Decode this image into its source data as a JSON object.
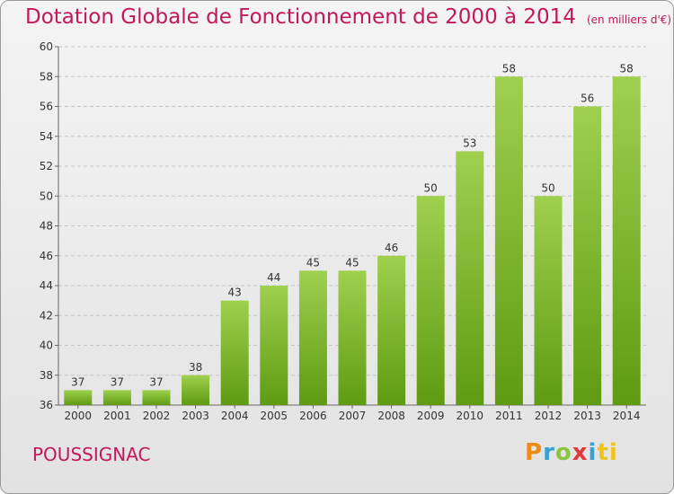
{
  "header": {
    "title": "Dotation Globale de Fonctionnement de 2000 à 2014",
    "subtitle": "(en milliers d'€)"
  },
  "footer": {
    "commune": "POUSSIGNAC",
    "logo": [
      "P",
      "r",
      "o",
      "x",
      "i",
      "ti"
    ]
  },
  "colors": {
    "bar_light": "#9fd04e",
    "bar_dark": "#5e9b12",
    "title": "#c2185b",
    "grid": "#c8c8c8"
  },
  "chart_data": {
    "type": "bar",
    "title": "Dotation Globale de Fonctionnement de 2000 à 2014",
    "categories": [
      "2000",
      "2001",
      "2002",
      "2003",
      "2004",
      "2005",
      "2006",
      "2007",
      "2008",
      "2009",
      "2010",
      "2011",
      "2012",
      "2013",
      "2014"
    ],
    "values": [
      37,
      37,
      37,
      38,
      43,
      44,
      45,
      45,
      46,
      50,
      53,
      58,
      50,
      56,
      58
    ],
    "ylim": [
      36,
      60
    ],
    "yticks": [
      36,
      38,
      40,
      42,
      44,
      46,
      48,
      50,
      52,
      54,
      56,
      58,
      60
    ],
    "grid": true,
    "data_labels": true
  }
}
